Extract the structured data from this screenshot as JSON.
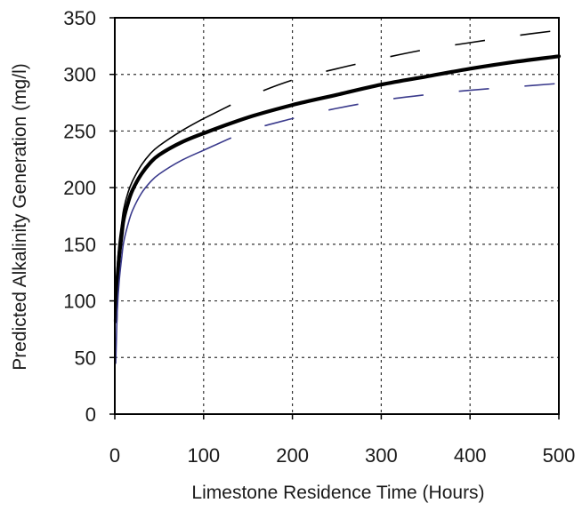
{
  "chart_data": {
    "type": "line",
    "title": "",
    "xlabel": "Limestone Residence Time (Hours)",
    "ylabel": "Predicted Alkalinity Generation (mg/l)",
    "xlim": [
      0,
      500
    ],
    "ylim": [
      0,
      350
    ],
    "xticks": [
      0,
      100,
      200,
      300,
      400,
      500
    ],
    "yticks": [
      0,
      50,
      100,
      150,
      200,
      250,
      300,
      350
    ],
    "xtick_labels": [
      "0",
      "100",
      "200",
      "300",
      "400",
      "500"
    ],
    "ytick_labels": [
      "0",
      "50",
      "100",
      "150",
      "200",
      "250",
      "300",
      "350"
    ],
    "grid": true,
    "legend": "none",
    "series": [
      {
        "style": "solid-thick",
        "color": "#000000",
        "x": [
          1,
          2,
          3,
          5,
          8,
          10,
          15,
          20,
          30,
          40,
          50,
          75,
          100,
          150,
          200,
          250,
          300,
          350,
          400,
          450,
          500
        ],
        "y": [
          82,
          107,
          120,
          140,
          160,
          172,
          187,
          198,
          212,
          222,
          229,
          240,
          248,
          262,
          273,
          282,
          291,
          298,
          305,
          311,
          316
        ]
      },
      {
        "style": "solid-thin-then-long-dash",
        "color": "#000000",
        "x": [
          1,
          2,
          3,
          5,
          8,
          10,
          15,
          20,
          30,
          40,
          50,
          75,
          100,
          150,
          200,
          250,
          300,
          350,
          400,
          450,
          500
        ],
        "y": [
          95,
          118,
          133,
          152,
          170,
          181,
          196,
          206,
          220,
          230,
          237,
          250,
          261,
          280,
          295,
          305,
          314,
          322,
          328,
          334,
          339
        ]
      },
      {
        "style": "solid-thin-then-long-dash",
        "color": "#3a3a8c",
        "x": [
          1,
          2,
          3,
          5,
          8,
          10,
          15,
          20,
          30,
          40,
          50,
          75,
          100,
          150,
          200,
          250,
          300,
          350,
          400,
          450,
          500
        ],
        "y": [
          45,
          72,
          95,
          118,
          140,
          152,
          168,
          180,
          195,
          205,
          212,
          224,
          233,
          250,
          261,
          270,
          277,
          282,
          286,
          289,
          292
        ]
      }
    ]
  }
}
